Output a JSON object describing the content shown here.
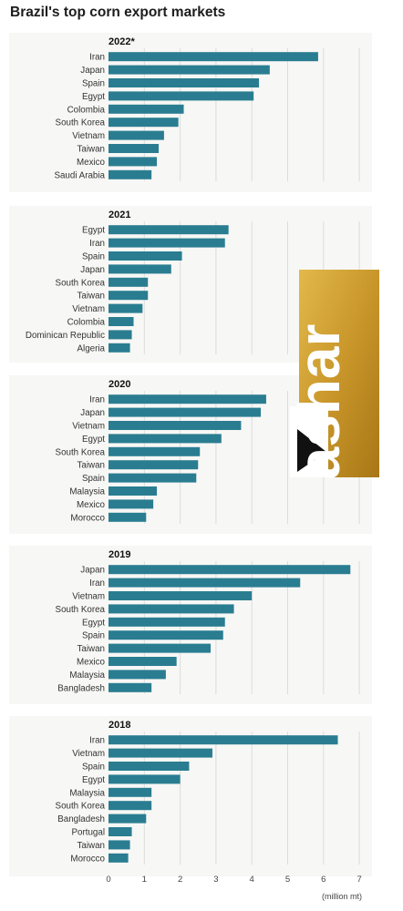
{
  "title": "Brazil's top corn export markets",
  "chart_data": [
    {
      "type": "bar",
      "orientation": "horizontal",
      "title": "2022*",
      "categories": [
        "Iran",
        "Japan",
        "Spain",
        "Egypt",
        "Colombia",
        "South Korea",
        "Vietnam",
        "Taiwan",
        "Mexico",
        "Saudi Arabia"
      ],
      "values": [
        5.85,
        4.5,
        4.2,
        4.05,
        2.1,
        1.95,
        1.55,
        1.4,
        1.35,
        1.2
      ],
      "xlim": [
        0,
        7
      ]
    },
    {
      "type": "bar",
      "orientation": "horizontal",
      "title": "2021",
      "categories": [
        "Egypt",
        "Iran",
        "Spain",
        "Japan",
        "South Korea",
        "Taiwan",
        "Vietnam",
        "Colombia",
        "Dominican Republic",
        "Algeria"
      ],
      "values": [
        3.35,
        3.25,
        2.05,
        1.75,
        1.1,
        1.1,
        0.95,
        0.7,
        0.65,
        0.6
      ],
      "xlim": [
        0,
        7
      ]
    },
    {
      "type": "bar",
      "orientation": "horizontal",
      "title": "2020",
      "categories": [
        "Iran",
        "Japan",
        "Vietnam",
        "Egypt",
        "South Korea",
        "Taiwan",
        "Spain",
        "Malaysia",
        "Mexico",
        "Morocco"
      ],
      "values": [
        4.4,
        4.25,
        3.7,
        3.15,
        2.55,
        2.5,
        2.45,
        1.35,
        1.25,
        1.05
      ],
      "xlim": [
        0,
        7
      ]
    },
    {
      "type": "bar",
      "orientation": "horizontal",
      "title": "2019",
      "categories": [
        "Japan",
        "Iran",
        "Vietnam",
        "South Korea",
        "Egypt",
        "Spain",
        "Taiwan",
        "Mexico",
        "Malaysia",
        "Bangladesh"
      ],
      "values": [
        6.75,
        5.35,
        4.0,
        3.5,
        3.25,
        3.2,
        2.85,
        1.9,
        1.6,
        1.2
      ],
      "xlim": [
        0,
        7
      ]
    },
    {
      "type": "bar",
      "orientation": "horizontal",
      "title": "2018",
      "categories": [
        "Iran",
        "Vietnam",
        "Spain",
        "Egypt",
        "Malaysia",
        "South Korea",
        "Bangladesh",
        "Portugal",
        "Taiwan",
        "Morocco"
      ],
      "values": [
        6.4,
        2.9,
        2.25,
        2.0,
        1.2,
        1.2,
        1.05,
        0.65,
        0.6,
        0.55
      ],
      "xlim": [
        0,
        7
      ]
    }
  ],
  "x_axis": {
    "ticks": [
      "0",
      "1",
      "2",
      "3",
      "4",
      "5",
      "6",
      "7"
    ],
    "unit": "(million mt)"
  },
  "watermark": {
    "text": "Yashar",
    "colors": {
      "gold": "#c9962a",
      "white": "#ffffff",
      "black": "#111111"
    }
  },
  "colors": {
    "bar": "#2a7d91",
    "grid": "#dcdcdc"
  }
}
